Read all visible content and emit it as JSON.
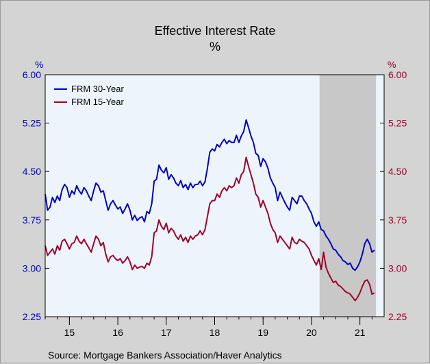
{
  "chart_data": {
    "type": "line",
    "title": "Effective Interest Rate",
    "subtitle": "%",
    "y_unit_left": "%",
    "y_unit_right": "%",
    "ylim": [
      2.25,
      6.0
    ],
    "yticks": [
      "6.00",
      "5.25",
      "4.50",
      "3.75",
      "3.00",
      "2.25"
    ],
    "xlim": [
      2014.5,
      2021.5
    ],
    "xticks": [
      "15",
      "16",
      "17",
      "18",
      "19",
      "20",
      "21"
    ],
    "recession": [
      2020.167,
      2021.333
    ],
    "grid": false,
    "legend_position": "top-left",
    "source": "Source:  Mortgage Bankers Association/Haver Analytics",
    "colors": {
      "frm30": "#0000c0",
      "frm15": "#a00028",
      "left_axis": "#0000c0",
      "right_axis": "#a00028",
      "recession": "#c8c8c8",
      "plot_bg": "#eef4fc"
    },
    "series": [
      {
        "name": "FRM 30-Year",
        "color": "#0000c0",
        "x": [
          2014.5,
          2014.55,
          2014.6,
          2014.65,
          2014.7,
          2014.75,
          2014.8,
          2014.85,
          2014.9,
          2014.95,
          2015.0,
          2015.05,
          2015.1,
          2015.15,
          2015.2,
          2015.25,
          2015.3,
          2015.35,
          2015.4,
          2015.45,
          2015.5,
          2015.55,
          2015.6,
          2015.65,
          2015.7,
          2015.75,
          2015.8,
          2015.85,
          2015.9,
          2015.95,
          2016.0,
          2016.05,
          2016.1,
          2016.15,
          2016.2,
          2016.25,
          2016.3,
          2016.35,
          2016.4,
          2016.45,
          2016.5,
          2016.55,
          2016.6,
          2016.65,
          2016.7,
          2016.75,
          2016.8,
          2016.85,
          2016.9,
          2016.95,
          2017.0,
          2017.05,
          2017.1,
          2017.15,
          2017.2,
          2017.25,
          2017.3,
          2017.35,
          2017.4,
          2017.45,
          2017.5,
          2017.55,
          2017.6,
          2017.65,
          2017.7,
          2017.75,
          2017.8,
          2017.85,
          2017.9,
          2017.95,
          2018.0,
          2018.05,
          2018.1,
          2018.15,
          2018.2,
          2018.25,
          2018.3,
          2018.35,
          2018.4,
          2018.45,
          2018.5,
          2018.55,
          2018.6,
          2018.65,
          2018.7,
          2018.75,
          2018.8,
          2018.85,
          2018.9,
          2018.95,
          2019.0,
          2019.05,
          2019.1,
          2019.15,
          2019.2,
          2019.25,
          2019.3,
          2019.35,
          2019.4,
          2019.45,
          2019.5,
          2019.55,
          2019.6,
          2019.65,
          2019.7,
          2019.75,
          2019.8,
          2019.85,
          2019.9,
          2019.95,
          2020.0,
          2020.05,
          2020.1,
          2020.15,
          2020.2,
          2020.25,
          2020.3,
          2020.35,
          2020.4,
          2020.45,
          2020.5,
          2020.55,
          2020.6,
          2020.65,
          2020.7,
          2020.75,
          2020.8,
          2020.85,
          2020.9,
          2020.95,
          2021.0,
          2021.05,
          2021.1,
          2021.15,
          2021.2,
          2021.25,
          2021.3
        ],
        "values": [
          4.15,
          3.9,
          3.95,
          4.1,
          4.02,
          4.12,
          4.05,
          4.22,
          4.3,
          4.25,
          4.1,
          4.2,
          4.15,
          4.28,
          4.2,
          4.15,
          4.25,
          4.2,
          4.12,
          4.05,
          4.2,
          4.32,
          4.28,
          4.18,
          4.2,
          4.05,
          3.9,
          4.0,
          4.05,
          3.98,
          3.92,
          3.95,
          3.85,
          3.92,
          4.0,
          3.9,
          3.75,
          3.82,
          3.74,
          3.78,
          3.8,
          3.72,
          3.88,
          3.85,
          4.0,
          4.35,
          4.38,
          4.6,
          4.52,
          4.48,
          4.56,
          4.38,
          4.45,
          4.4,
          4.32,
          4.28,
          4.36,
          4.25,
          4.3,
          4.22,
          4.32,
          4.25,
          4.3,
          4.3,
          4.35,
          4.28,
          4.34,
          4.55,
          4.8,
          4.85,
          4.82,
          4.92,
          4.88,
          4.95,
          5.0,
          4.93,
          4.98,
          4.95,
          4.95,
          5.06,
          4.95,
          5.05,
          5.12,
          5.3,
          5.18,
          5.05,
          4.95,
          4.78,
          4.75,
          4.58,
          4.7,
          4.65,
          4.55,
          4.4,
          4.32,
          4.25,
          4.05,
          4.18,
          4.1,
          4.02,
          3.95,
          3.9,
          4.1,
          4.05,
          4.0,
          4.12,
          4.12,
          4.05,
          4.0,
          3.92,
          3.85,
          3.72,
          3.65,
          3.72,
          3.6,
          3.58,
          3.5,
          3.45,
          3.38,
          3.3,
          3.28,
          3.22,
          3.18,
          3.12,
          3.1,
          3.06,
          3.08,
          3.0,
          2.97,
          3.02,
          3.1,
          3.22,
          3.38,
          3.45,
          3.38,
          3.25,
          3.28
        ]
      },
      {
        "name": "FRM 15-Year",
        "color": "#a00028",
        "x": [
          2014.5,
          2014.55,
          2014.6,
          2014.65,
          2014.7,
          2014.75,
          2014.8,
          2014.85,
          2014.9,
          2014.95,
          2015.0,
          2015.05,
          2015.1,
          2015.15,
          2015.2,
          2015.25,
          2015.3,
          2015.35,
          2015.4,
          2015.45,
          2015.5,
          2015.55,
          2015.6,
          2015.65,
          2015.7,
          2015.75,
          2015.8,
          2015.85,
          2015.9,
          2015.95,
          2016.0,
          2016.05,
          2016.1,
          2016.15,
          2016.2,
          2016.25,
          2016.3,
          2016.35,
          2016.4,
          2016.45,
          2016.5,
          2016.55,
          2016.6,
          2016.65,
          2016.7,
          2016.75,
          2016.8,
          2016.85,
          2016.9,
          2016.95,
          2017.0,
          2017.05,
          2017.1,
          2017.15,
          2017.2,
          2017.25,
          2017.3,
          2017.35,
          2017.4,
          2017.45,
          2017.5,
          2017.55,
          2017.6,
          2017.65,
          2017.7,
          2017.75,
          2017.8,
          2017.85,
          2017.9,
          2017.95,
          2018.0,
          2018.05,
          2018.1,
          2018.15,
          2018.2,
          2018.25,
          2018.3,
          2018.35,
          2018.4,
          2018.45,
          2018.5,
          2018.55,
          2018.6,
          2018.65,
          2018.7,
          2018.75,
          2018.8,
          2018.85,
          2018.9,
          2018.95,
          2019.0,
          2019.05,
          2019.1,
          2019.15,
          2019.2,
          2019.25,
          2019.3,
          2019.35,
          2019.4,
          2019.45,
          2019.5,
          2019.55,
          2019.6,
          2019.65,
          2019.7,
          2019.75,
          2019.8,
          2019.85,
          2019.9,
          2019.95,
          2020.0,
          2020.05,
          2020.1,
          2020.15,
          2020.2,
          2020.25,
          2020.3,
          2020.35,
          2020.4,
          2020.45,
          2020.5,
          2020.55,
          2020.6,
          2020.65,
          2020.7,
          2020.75,
          2020.8,
          2020.85,
          2020.9,
          2020.95,
          2021.0,
          2021.05,
          2021.1,
          2021.15,
          2021.2,
          2021.25,
          2021.3
        ],
        "values": [
          3.35,
          3.2,
          3.25,
          3.3,
          3.22,
          3.35,
          3.28,
          3.42,
          3.45,
          3.38,
          3.3,
          3.38,
          3.4,
          3.5,
          3.42,
          3.38,
          3.45,
          3.38,
          3.32,
          3.25,
          3.38,
          3.5,
          3.45,
          3.35,
          3.4,
          3.22,
          3.1,
          3.18,
          3.2,
          3.15,
          3.12,
          3.15,
          3.08,
          3.12,
          3.18,
          3.1,
          2.98,
          3.05,
          3.0,
          3.02,
          3.03,
          3.0,
          3.08,
          3.05,
          3.18,
          3.55,
          3.58,
          3.75,
          3.65,
          3.6,
          3.7,
          3.55,
          3.62,
          3.58,
          3.5,
          3.45,
          3.52,
          3.42,
          3.48,
          3.4,
          3.5,
          3.45,
          3.5,
          3.52,
          3.58,
          3.52,
          3.6,
          3.8,
          4.0,
          4.05,
          4.05,
          4.15,
          4.1,
          4.2,
          4.25,
          4.2,
          4.28,
          4.25,
          4.28,
          4.4,
          4.32,
          4.45,
          4.5,
          4.72,
          4.58,
          4.45,
          4.32,
          4.15,
          4.1,
          3.95,
          4.05,
          3.95,
          3.85,
          3.7,
          3.6,
          3.55,
          3.4,
          3.5,
          3.45,
          3.4,
          3.35,
          3.3,
          3.48,
          3.4,
          3.38,
          3.45,
          3.42,
          3.4,
          3.35,
          3.3,
          3.2,
          3.12,
          3.05,
          3.15,
          2.98,
          3.25,
          3.02,
          2.92,
          2.85,
          2.78,
          2.8,
          2.74,
          2.72,
          2.68,
          2.64,
          2.62,
          2.6,
          2.55,
          2.5,
          2.55,
          2.62,
          2.72,
          2.8,
          2.82,
          2.75,
          2.6,
          2.62
        ]
      }
    ]
  }
}
